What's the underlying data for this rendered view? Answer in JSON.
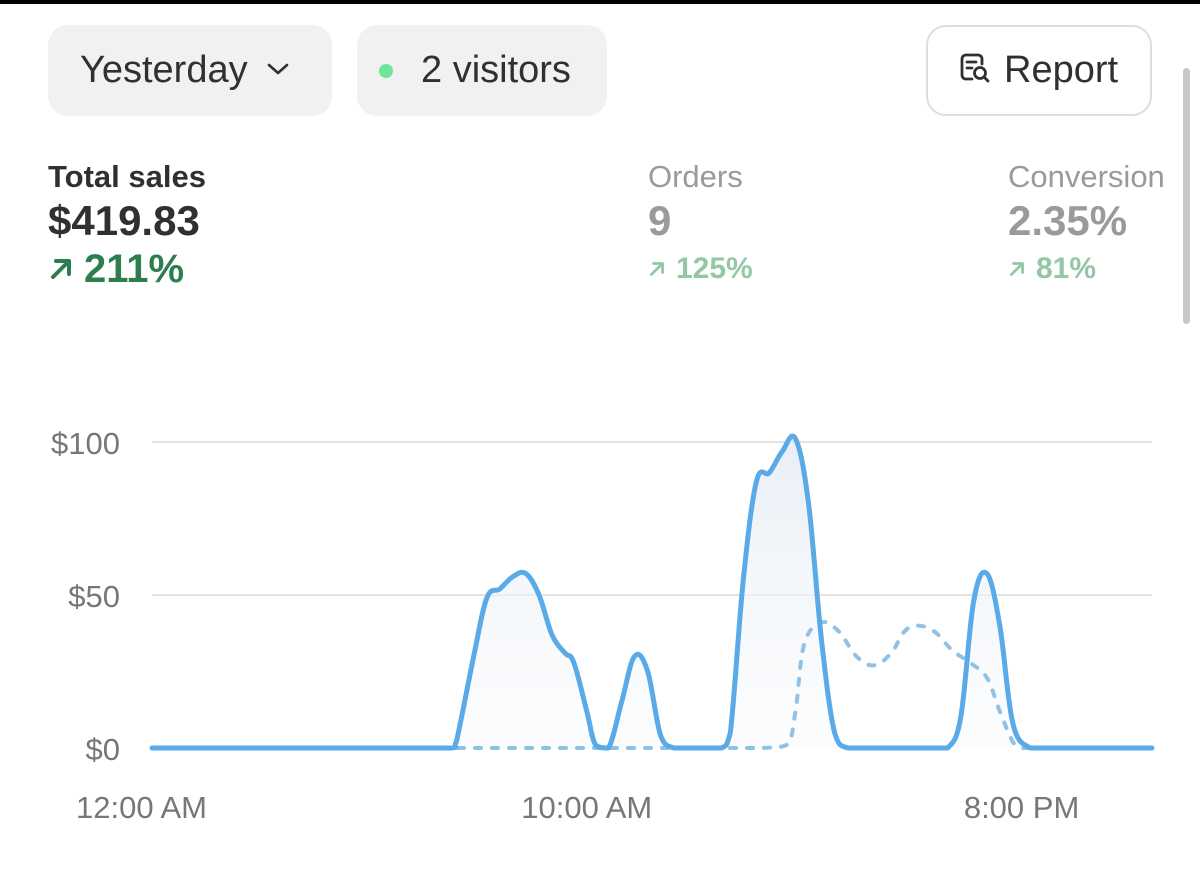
{
  "filters": {
    "date_range": "Yesterday",
    "visitors": "2 visitors",
    "report_label": "Report"
  },
  "metrics": [
    {
      "label": "Total sales",
      "value": "$419.83",
      "change": "211%",
      "trend": "up"
    },
    {
      "label": "Orders",
      "value": "9",
      "change": "125%",
      "trend": "up"
    },
    {
      "label": "Conversion",
      "value": "2.35%",
      "change": "81%",
      "trend": "up"
    }
  ],
  "icons": {
    "date_dropdown": "chevron-down-icon",
    "visitors_dot": "live-dot-icon",
    "report": "report-search-icon",
    "trend": "arrow-up-right-icon"
  },
  "colors": {
    "accent": "#5aaae8",
    "positive": "#2e7d4f",
    "live_dot": "#6ee59a"
  },
  "chart_data": {
    "type": "area",
    "y_tick_labels": [
      "$0",
      "$50",
      "$100"
    ],
    "y_ticks": [
      0,
      50,
      100
    ],
    "x_tick_labels": [
      "12:00 AM",
      "10:00 AM",
      "8:00 PM"
    ],
    "x_tick_hours": [
      0,
      10,
      20
    ],
    "ylim": [
      0,
      100
    ],
    "xlim_hours": [
      0,
      23
    ],
    "grid": true,
    "series": [
      {
        "style": "solid",
        "x_hours": [
          0,
          1,
          2,
          3,
          4,
          5,
          6,
          6.9,
          7,
          7.4,
          7.7,
          8,
          8.3,
          8.6,
          8.9,
          9.2,
          9.5,
          9.7,
          10,
          10.2,
          10.5,
          10.8,
          11.1,
          11.4,
          11.7,
          12,
          12.3,
          12.7,
          13.1,
          13.3,
          13.6,
          13.9,
          14.2,
          14.5,
          14.8,
          15.1,
          15.4,
          15.7,
          16,
          16.5,
          17,
          17.5,
          18,
          18.3,
          18.6,
          18.9,
          19.2,
          19.5,
          19.8,
          20.2,
          20.6,
          21,
          22,
          23
        ],
        "values": [
          0,
          0,
          0,
          0,
          0,
          0,
          0,
          0,
          2,
          30,
          49,
          52,
          56,
          57,
          50,
          37,
          31,
          28,
          12,
          1,
          0,
          15,
          30,
          25,
          4,
          0,
          0,
          0,
          0,
          5,
          55,
          87,
          90,
          97,
          101,
          80,
          35,
          5,
          0,
          0,
          0,
          0,
          0,
          0,
          10,
          48,
          57,
          40,
          8,
          0,
          0,
          0,
          0,
          0
        ]
      },
      {
        "style": "dashed",
        "x_hours": [
          0,
          2,
          4,
          6,
          8,
          10,
          11,
          12,
          13,
          14,
          14.6,
          14.8,
          15,
          15.4,
          15.8,
          16.2,
          16.6,
          17,
          17.3,
          17.6,
          18,
          18.4,
          18.8,
          19.2,
          19.5,
          19.8,
          20,
          20.2,
          20.5,
          21,
          22,
          23
        ],
        "values": [
          0,
          0,
          0,
          0,
          0,
          0,
          0,
          0,
          0,
          0,
          1,
          12,
          34,
          41,
          38,
          30,
          27,
          31,
          38,
          40,
          38,
          32,
          28,
          23,
          12,
          2,
          0,
          0,
          0,
          0,
          0,
          0
        ]
      }
    ]
  }
}
